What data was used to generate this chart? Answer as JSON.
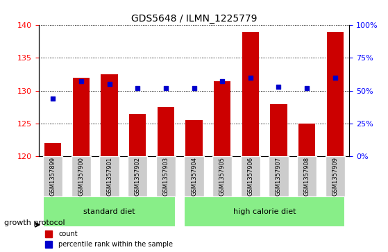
{
  "title": "GDS5648 / ILMN_1225779",
  "samples": [
    "GSM1357899",
    "GSM1357900",
    "GSM1357901",
    "GSM1357902",
    "GSM1357903",
    "GSM1357904",
    "GSM1357905",
    "GSM1357906",
    "GSM1357907",
    "GSM1357908",
    "GSM1357909"
  ],
  "bar_values": [
    122.0,
    132.0,
    132.5,
    126.5,
    127.5,
    125.5,
    131.5,
    139.0,
    128.0,
    125.0,
    139.0
  ],
  "percentile_values": [
    44,
    57,
    55,
    52,
    52,
    52,
    57,
    60,
    53,
    52,
    60
  ],
  "bar_color": "#cc0000",
  "dot_color": "#0000cc",
  "ymin": 120,
  "ymax": 140,
  "yticks": [
    120,
    125,
    130,
    135,
    140
  ],
  "y2min": 0,
  "y2max": 100,
  "y2ticks": [
    0,
    25,
    50,
    75,
    100
  ],
  "y2ticklabels": [
    "0%",
    "25%",
    "50%",
    "75%",
    "100%"
  ],
  "group_labels": [
    "standard diet",
    "high calorie diet"
  ],
  "group_ranges": [
    [
      0,
      4
    ],
    [
      5,
      10
    ]
  ],
  "group_colors": [
    "#77dd77",
    "#77dd77"
  ],
  "xticklabel_bg": "#cccccc",
  "protocol_label": "growth protocol",
  "legend_bar_label": "count",
  "legend_dot_label": "percentile rank within the sample",
  "bar_width": 0.6,
  "figsize": [
    5.59,
    3.63
  ],
  "dpi": 100
}
